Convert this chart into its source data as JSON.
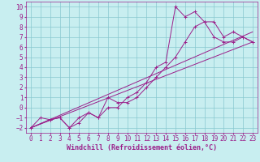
{
  "xlabel": "Windchill (Refroidissement éolien,°C)",
  "xlim": [
    -0.5,
    23.5
  ],
  "ylim": [
    -2.5,
    10.5
  ],
  "xticks": [
    0,
    1,
    2,
    3,
    4,
    5,
    6,
    7,
    8,
    9,
    10,
    11,
    12,
    13,
    14,
    15,
    16,
    17,
    18,
    19,
    20,
    21,
    22,
    23
  ],
  "yticks": [
    -2,
    -1,
    0,
    1,
    2,
    3,
    4,
    5,
    6,
    7,
    8,
    9,
    10
  ],
  "bg_color": "#c8eef0",
  "line_color": "#9b1f8a",
  "grid_color": "#88c8d0",
  "series1_x": [
    0,
    1,
    2,
    3,
    4,
    5,
    6,
    7,
    8,
    9,
    10,
    11,
    12,
    13,
    14,
    15,
    16,
    17,
    18,
    19,
    20,
    21,
    22,
    23
  ],
  "series1_y": [
    -2,
    -1,
    -1.2,
    -1,
    -2,
    -1,
    -0.5,
    -1,
    0,
    0,
    1,
    1.5,
    2.5,
    4,
    4.5,
    10,
    9,
    9.5,
    8.5,
    8.5,
    7,
    7.5,
    7,
    6.5
  ],
  "series2_x": [
    0,
    2,
    3,
    4,
    5,
    6,
    7,
    8,
    9,
    10,
    11,
    12,
    13,
    14,
    15,
    16,
    17,
    18,
    19,
    20,
    21,
    22,
    23
  ],
  "series2_y": [
    -2,
    -1.2,
    -1,
    -2,
    -1.5,
    -0.5,
    -1,
    1,
    0.5,
    0.5,
    1,
    2,
    3,
    4,
    5,
    6.5,
    8,
    8.5,
    7,
    6.5,
    6.5,
    7,
    6.5
  ],
  "line3_x": [
    0,
    23
  ],
  "line3_y": [
    -2,
    6.5
  ],
  "line4_x": [
    0,
    23
  ],
  "line4_y": [
    -2,
    7.5
  ],
  "font_size": 5.5,
  "xlabel_font_size": 6.0,
  "tick_font_size": 5.5
}
